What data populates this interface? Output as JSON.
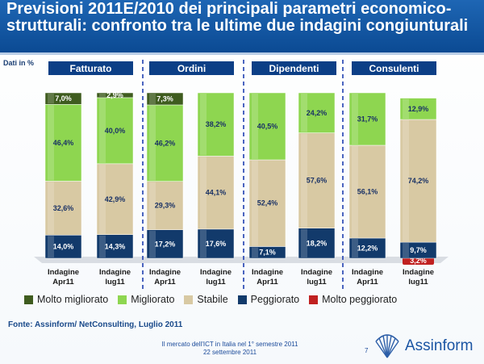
{
  "header": {
    "title": "Previsioni 2011E/2010 dei principali parametri economico-strutturali: confronto tra le ultime due indagini congiunturali"
  },
  "note": "Dati in %",
  "colors": {
    "molto_migliorato": "#3f5c1f",
    "migliorato": "#8ed650",
    "stabile": "#d8c9a3",
    "peggiorato": "#123a6b",
    "molto_peggiorato": "#c02020",
    "group_header": "#0c3f86"
  },
  "chart_data": {
    "type": "bar",
    "stacked": true,
    "ylim": [
      0,
      100
    ],
    "groups": [
      "Fatturato",
      "Ordini",
      "Dipendenti",
      "Consulenti"
    ],
    "categories": [
      [
        "Indagine",
        "Apr11"
      ],
      [
        "Indagine",
        "lug11"
      ],
      [
        "Indagine",
        "Apr11"
      ],
      [
        "Indagine",
        "lug11"
      ],
      [
        "Indagine",
        "Apr11"
      ],
      [
        "Indagine",
        "lug11"
      ],
      [
        "Indagine",
        "Apr11"
      ],
      [
        "Indagine",
        "lug11"
      ]
    ],
    "series": [
      {
        "name": "Molto peggiorato",
        "key": "molto_peggiorato",
        "values": [
          0,
          0,
          0,
          0,
          0,
          0,
          0,
          3.2
        ],
        "labels": [
          "",
          "",
          "",
          "",
          "",
          "",
          "",
          "3,2%"
        ]
      },
      {
        "name": "Peggiorato",
        "key": "peggiorato",
        "values": [
          14.0,
          14.3,
          17.2,
          17.6,
          7.1,
          18.2,
          12.2,
          9.7
        ],
        "labels": [
          "14,0%",
          "14,3%",
          "17,2%",
          "17,6%",
          "7,1%",
          "18,2%",
          "12,2%",
          "9,7%"
        ]
      },
      {
        "name": "Stabile",
        "key": "stabile",
        "values": [
          32.6,
          42.9,
          29.3,
          44.1,
          52.4,
          57.6,
          56.1,
          74.2
        ],
        "labels": [
          "32,6%",
          "42,9%",
          "29,3%",
          "44,1%",
          "52,4%",
          "57,6%",
          "56,1%",
          "74,2%"
        ]
      },
      {
        "name": "Migliorato",
        "key": "migliorato",
        "values": [
          46.4,
          40.0,
          46.2,
          38.2,
          40.5,
          24.2,
          31.7,
          12.9
        ],
        "labels": [
          "46,4%",
          "40,0%",
          "46,2%",
          "38,2%",
          "40,5%",
          "24,2%",
          "31,7%",
          "12,9%"
        ]
      },
      {
        "name": "Molto migliorato",
        "key": "molto_migliorato",
        "values": [
          7.0,
          2.9,
          7.3,
          0,
          0,
          0,
          0,
          0
        ],
        "labels": [
          "7,0%",
          "2,9%",
          "7,3%",
          "",
          "",
          "",
          "",
          ""
        ]
      }
    ]
  },
  "legend": [
    {
      "label": "Molto migliorato",
      "key": "molto_migliorato"
    },
    {
      "label": "Migliorato",
      "key": "migliorato"
    },
    {
      "label": "Stabile",
      "key": "stabile"
    },
    {
      "label": "Peggiorato",
      "key": "peggiorato"
    },
    {
      "label": "Molto peggiorato",
      "key": "molto_peggiorato"
    }
  ],
  "source": "Fonte: Assinform/ NetConsulting, Luglio 2011",
  "footer": {
    "line1": "Il mercato dell'ICT in Italia nel 1° semestre 2011",
    "line2": "22 settembre 2011",
    "page": "7",
    "logo": "Assinform"
  }
}
